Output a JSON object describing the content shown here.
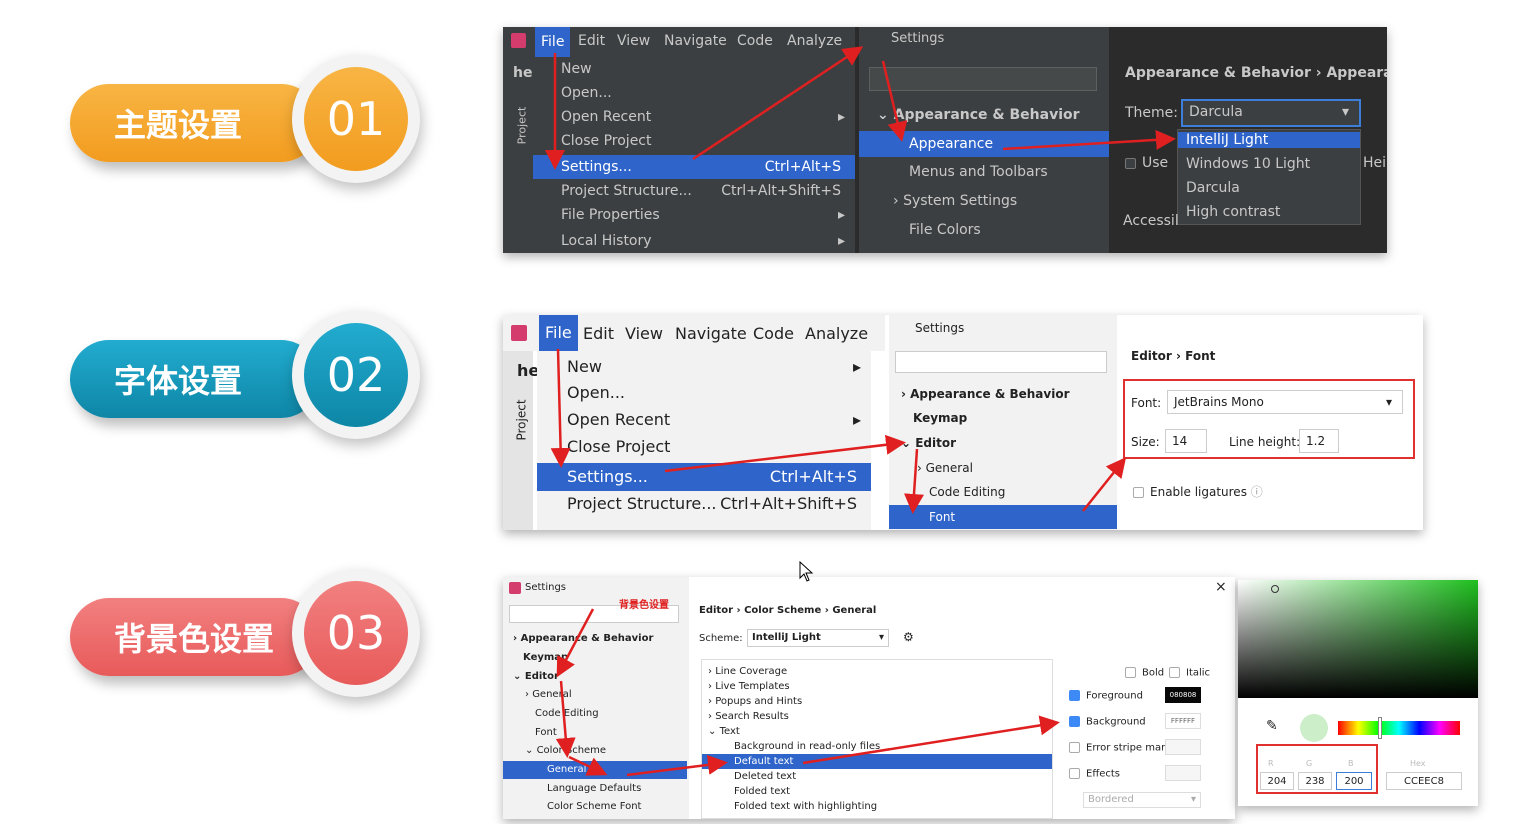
{
  "sections": [
    {
      "label": "主题设置",
      "num": "01",
      "color": "#f4a623",
      "ring": "#f4a623"
    },
    {
      "label": "字体设置",
      "num": "02",
      "color": "#1496b8",
      "ring": "#1496b8"
    },
    {
      "label": "背景色设置",
      "num": "03",
      "color": "#ee6b6b",
      "ring": "#ee6b6b"
    }
  ],
  "menubar": {
    "file": "File",
    "edit": "Edit",
    "view": "View",
    "navigate": "Navigate",
    "code": "Code",
    "analyze": "Analyze"
  },
  "filemenu": {
    "new": "New",
    "open": "Open...",
    "open_recent": "Open Recent",
    "close_project": "Close Project",
    "settings": "Settings...",
    "settings_sc": "Ctrl+Alt+S",
    "project_structure": "Project Structure...",
    "project_structure_sc": "Ctrl+Alt+Shift+S",
    "file_properties": "File Properties",
    "local_history": "Local History"
  },
  "sidebar": {
    "hel": "hel",
    "project": "Project"
  },
  "s1": {
    "title": "Settings",
    "tree": [
      "Appearance & Behavior",
      "Appearance",
      "Menus and Toolbars",
      "System Settings",
      "File Colors"
    ],
    "breadcrumb": [
      "Appearance & Behavior",
      "Appearan"
    ],
    "theme_label": "Theme:",
    "theme_value": "Darcula",
    "theme_options": [
      "IntelliJ Light",
      "Windows 10 Light",
      "Darcula",
      "High contrast"
    ],
    "use": "Use",
    "accessib": "Accessil",
    "hei": "Hei"
  },
  "s2": {
    "title": "Settings",
    "tree": [
      "Appearance & Behavior",
      "Keymap",
      "Editor",
      "General",
      "Code Editing",
      "Font"
    ],
    "breadcrumb": [
      "Editor",
      "Font"
    ],
    "font_label": "Font:",
    "font_value": "JetBrains Mono",
    "size_label": "Size:",
    "size_value": "14",
    "lh_label": "Line height:",
    "lh_value": "1.2",
    "ligatures": "Enable ligatures"
  },
  "s3": {
    "title": "Settings",
    "close": "×",
    "annotation": "背景色设置",
    "tree": [
      "Appearance & Behavior",
      "Keymap",
      "Editor",
      "General",
      "Code Editing",
      "Font",
      "Color Scheme",
      "General",
      "Language Defaults",
      "Color Scheme Font"
    ],
    "breadcrumb": [
      "Editor",
      "Color Scheme",
      "General"
    ],
    "scheme_label": "Scheme:",
    "scheme_value": "IntelliJ Light",
    "list": [
      "Line Coverage",
      "Live Templates",
      "Popups and Hints",
      "Search Results",
      "Text",
      "Background in read-only files",
      "Default text",
      "Deleted text",
      "Folded text",
      "Folded text with highlighting"
    ],
    "bold": "Bold",
    "italic": "Italic",
    "foreground": "Foreground",
    "fg_hex": "080808",
    "background": "Background",
    "bg_hex": "FFFFFF",
    "error_stripe": "Error stripe mark",
    "effects": "Effects",
    "bordered": "Bordered"
  },
  "picker": {
    "r_label": "R",
    "g_label": "G",
    "b_label": "B",
    "hex_label": "Hex",
    "r": "204",
    "g": "238",
    "b": "200",
    "hex": "CCEEC8",
    "swatch": "#cceec8"
  }
}
